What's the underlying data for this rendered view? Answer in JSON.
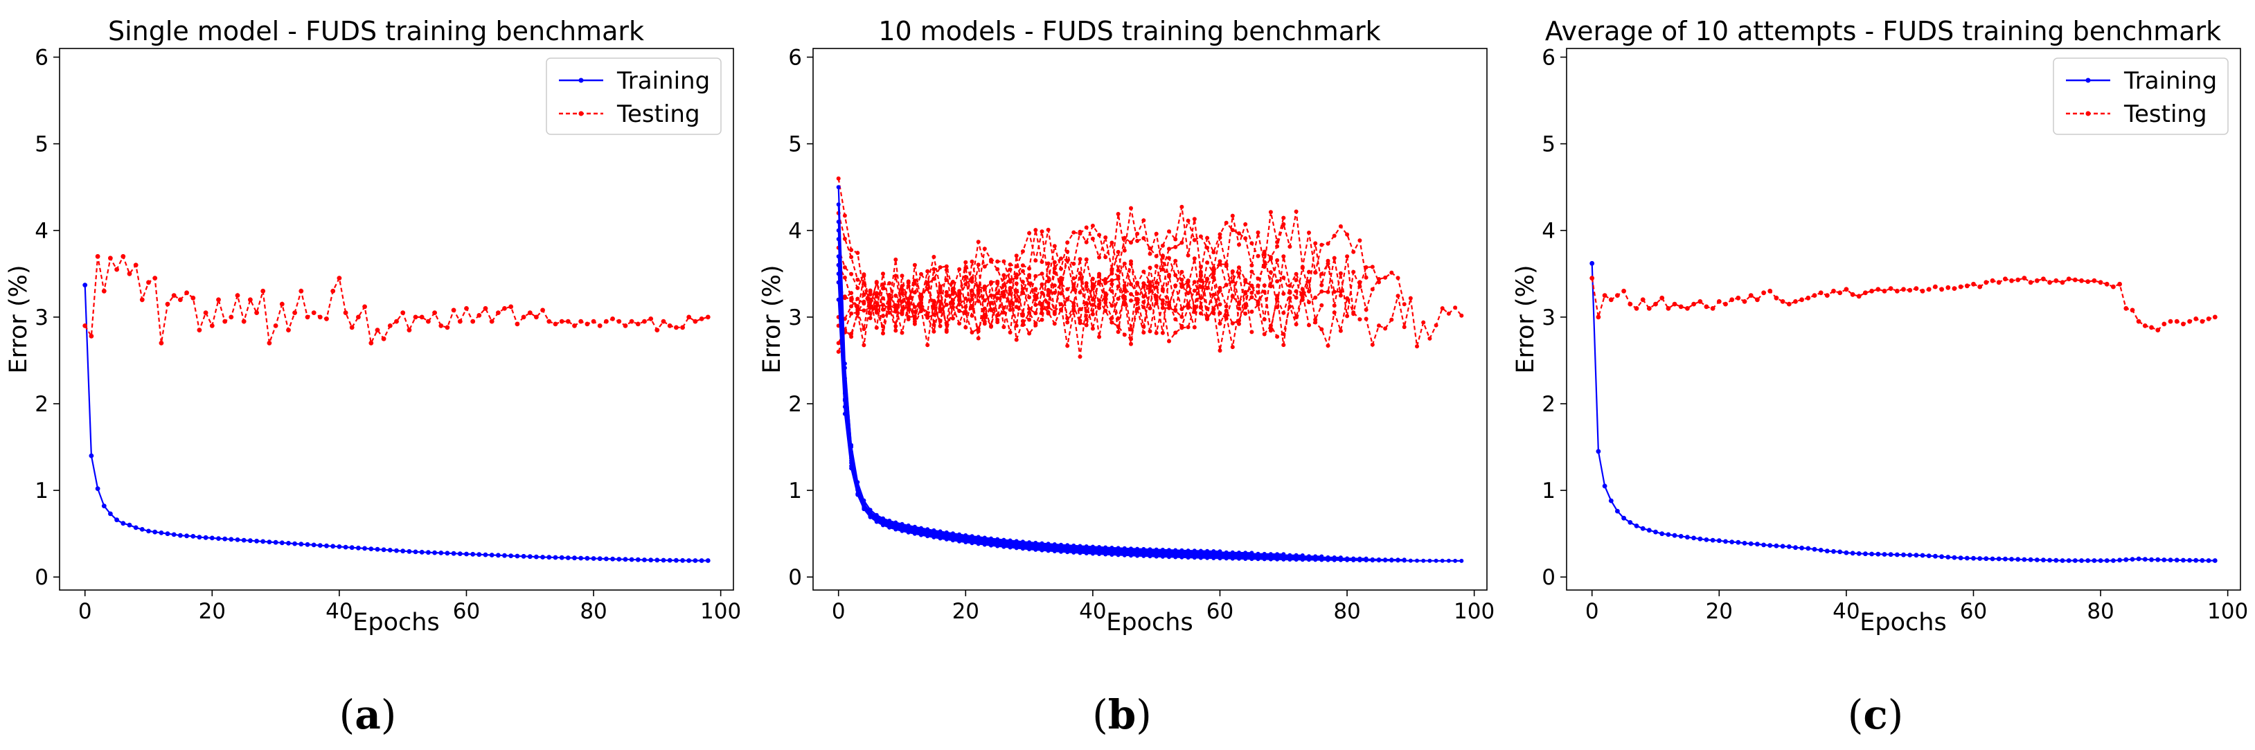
{
  "colors": {
    "training": "#0000ff",
    "testing": "#ff0000"
  },
  "chart_data": [
    {
      "type": "line",
      "panel": "a",
      "title": "Single model - FUDS training benchmark",
      "xlabel": "Epochs",
      "ylabel": "Error (%)",
      "xlim": [
        -4,
        102
      ],
      "ylim": [
        -0.15,
        6.1
      ],
      "xticks": [
        0,
        20,
        40,
        60,
        80,
        100
      ],
      "yticks": [
        0,
        1,
        2,
        3,
        4,
        5,
        6
      ],
      "legend": {
        "position": "upper right",
        "entries": [
          "Training",
          "Testing"
        ]
      },
      "series": [
        {
          "name": "Training",
          "style": "solid",
          "color": "#0000ff",
          "x_start": 0,
          "values": [
            3.37,
            1.4,
            1.02,
            0.82,
            0.73,
            0.66,
            0.62,
            0.6,
            0.57,
            0.55,
            0.53,
            0.52,
            0.51,
            0.5,
            0.49,
            0.48,
            0.475,
            0.47,
            0.46,
            0.455,
            0.45,
            0.445,
            0.44,
            0.435,
            0.43,
            0.425,
            0.42,
            0.415,
            0.41,
            0.405,
            0.4,
            0.395,
            0.39,
            0.385,
            0.38,
            0.375,
            0.37,
            0.365,
            0.36,
            0.355,
            0.35,
            0.345,
            0.34,
            0.335,
            0.33,
            0.325,
            0.32,
            0.315,
            0.31,
            0.305,
            0.3,
            0.295,
            0.29,
            0.287,
            0.284,
            0.281,
            0.278,
            0.275,
            0.272,
            0.269,
            0.266,
            0.263,
            0.26,
            0.257,
            0.254,
            0.251,
            0.248,
            0.245,
            0.242,
            0.239,
            0.236,
            0.233,
            0.23,
            0.228,
            0.226,
            0.224,
            0.222,
            0.22,
            0.218,
            0.216,
            0.214,
            0.212,
            0.21,
            0.208,
            0.206,
            0.204,
            0.202,
            0.2,
            0.198,
            0.196,
            0.195,
            0.194,
            0.193,
            0.192,
            0.191,
            0.19,
            0.19,
            0.19,
            0.19
          ]
        },
        {
          "name": "Testing",
          "style": "dashed",
          "color": "#ff0000",
          "x_start": 0,
          "values": [
            2.9,
            2.78,
            3.7,
            3.3,
            3.68,
            3.55,
            3.7,
            3.5,
            3.6,
            3.2,
            3.4,
            3.45,
            2.7,
            3.15,
            3.25,
            3.2,
            3.28,
            3.22,
            2.85,
            3.05,
            2.9,
            3.2,
            2.95,
            3.0,
            3.25,
            2.95,
            3.2,
            3.05,
            3.3,
            2.7,
            2.9,
            3.15,
            2.85,
            3.05,
            3.3,
            3.0,
            3.05,
            3.0,
            2.98,
            3.3,
            3.45,
            3.05,
            2.88,
            3.0,
            3.12,
            2.7,
            2.85,
            2.75,
            2.9,
            2.95,
            3.05,
            2.85,
            3.0,
            3.0,
            2.95,
            3.05,
            2.9,
            2.88,
            3.08,
            2.95,
            3.1,
            2.95,
            3.02,
            3.1,
            2.95,
            3.05,
            3.1,
            3.12,
            2.92,
            3.0,
            3.05,
            3.0,
            3.08,
            2.95,
            2.92,
            2.95,
            2.95,
            2.9,
            2.95,
            2.92,
            2.95,
            2.9,
            2.95,
            2.98,
            2.95,
            2.9,
            2.95,
            2.92,
            2.95,
            2.98,
            2.85,
            2.95,
            2.9,
            2.88,
            2.88,
            3.0,
            2.95,
            2.98,
            3.0
          ]
        }
      ]
    },
    {
      "type": "line",
      "panel": "b",
      "title": "10 models - FUDS training benchmark",
      "xlabel": "Epochs",
      "ylabel": "Error (%)",
      "xlim": [
        -4,
        102
      ],
      "ylim": [
        -0.15,
        6.1
      ],
      "xticks": [
        0,
        20,
        40,
        60,
        80,
        100
      ],
      "yticks": [
        0,
        1,
        2,
        3,
        4,
        5,
        6
      ],
      "legend": null,
      "training_runs": [
        {
          "length": 86,
          "start": 3.6,
          "final": 0.19
        },
        {
          "length": 99,
          "start": 4.5,
          "final": 0.18
        },
        {
          "length": 71,
          "start": 3.9,
          "final": 0.24
        },
        {
          "length": 84,
          "start": 3.4,
          "final": 0.2
        },
        {
          "length": 61,
          "start": 4.3,
          "final": 0.26
        },
        {
          "length": 77,
          "start": 3.2,
          "final": 0.22
        },
        {
          "length": 90,
          "start": 4.0,
          "final": 0.19
        },
        {
          "length": 66,
          "start": 3.5,
          "final": 0.25
        },
        {
          "length": 80,
          "start": 4.1,
          "final": 0.21
        },
        {
          "length": 74,
          "start": 3.7,
          "final": 0.23
        }
      ],
      "testing_runs": [
        {
          "length": 99,
          "start": 4.6,
          "plateau": 2.95
        },
        {
          "length": 84,
          "start": 3.2,
          "plateau": 3.85
        },
        {
          "length": 71,
          "start": 2.7,
          "plateau": 3.9
        },
        {
          "length": 86,
          "start": 3.4,
          "plateau": 3.4
        },
        {
          "length": 61,
          "start": 3.0,
          "plateau": 3.3
        },
        {
          "length": 77,
          "start": 4.2,
          "plateau": 3.2
        },
        {
          "length": 90,
          "start": 2.6,
          "plateau": 3.35
        },
        {
          "length": 66,
          "start": 3.6,
          "plateau": 3.15
        },
        {
          "length": 80,
          "start": 2.9,
          "plateau": 3.45
        },
        {
          "length": 74,
          "start": 3.8,
          "plateau": 3.1
        }
      ]
    },
    {
      "type": "line",
      "panel": "c",
      "title": "Average of 10 attempts - FUDS training benchmark",
      "xlabel": "Epochs",
      "ylabel": "Error (%)",
      "xlim": [
        -4,
        102
      ],
      "ylim": [
        -0.15,
        6.1
      ],
      "xticks": [
        0,
        20,
        40,
        60,
        80,
        100
      ],
      "yticks": [
        0,
        1,
        2,
        3,
        4,
        5,
        6
      ],
      "legend": {
        "position": "upper right",
        "entries": [
          "Training",
          "Testing"
        ]
      },
      "series": [
        {
          "name": "Training",
          "style": "solid",
          "color": "#0000ff",
          "x_start": 0,
          "values": [
            3.62,
            1.45,
            1.05,
            0.88,
            0.76,
            0.68,
            0.63,
            0.59,
            0.56,
            0.54,
            0.52,
            0.5,
            0.49,
            0.48,
            0.47,
            0.46,
            0.45,
            0.44,
            0.43,
            0.425,
            0.42,
            0.41,
            0.405,
            0.4,
            0.39,
            0.385,
            0.38,
            0.37,
            0.365,
            0.36,
            0.355,
            0.35,
            0.34,
            0.335,
            0.33,
            0.32,
            0.31,
            0.3,
            0.295,
            0.29,
            0.28,
            0.275,
            0.27,
            0.268,
            0.266,
            0.264,
            0.262,
            0.26,
            0.258,
            0.256,
            0.254,
            0.252,
            0.25,
            0.245,
            0.24,
            0.235,
            0.23,
            0.225,
            0.22,
            0.218,
            0.216,
            0.214,
            0.212,
            0.21,
            0.21,
            0.208,
            0.206,
            0.204,
            0.202,
            0.2,
            0.198,
            0.196,
            0.194,
            0.192,
            0.19,
            0.19,
            0.19,
            0.19,
            0.19,
            0.19,
            0.19,
            0.19,
            0.19,
            0.195,
            0.2,
            0.205,
            0.21,
            0.205,
            0.2,
            0.2,
            0.198,
            0.196,
            0.195,
            0.194,
            0.193,
            0.192,
            0.191,
            0.19,
            0.19
          ]
        },
        {
          "name": "Testing",
          "style": "dashed",
          "color": "#ff0000",
          "x_start": 0,
          "values": [
            3.45,
            3.0,
            3.25,
            3.2,
            3.25,
            3.3,
            3.15,
            3.1,
            3.2,
            3.1,
            3.15,
            3.22,
            3.1,
            3.15,
            3.12,
            3.1,
            3.15,
            3.18,
            3.12,
            3.1,
            3.18,
            3.15,
            3.2,
            3.22,
            3.18,
            3.25,
            3.2,
            3.28,
            3.3,
            3.22,
            3.18,
            3.15,
            3.18,
            3.2,
            3.22,
            3.25,
            3.28,
            3.25,
            3.3,
            3.28,
            3.32,
            3.26,
            3.24,
            3.28,
            3.3,
            3.32,
            3.3,
            3.33,
            3.3,
            3.32,
            3.31,
            3.33,
            3.3,
            3.32,
            3.35,
            3.32,
            3.34,
            3.33,
            3.35,
            3.36,
            3.38,
            3.35,
            3.4,
            3.42,
            3.4,
            3.44,
            3.42,
            3.43,
            3.45,
            3.4,
            3.42,
            3.44,
            3.4,
            3.42,
            3.4,
            3.44,
            3.43,
            3.42,
            3.41,
            3.42,
            3.4,
            3.38,
            3.35,
            3.38,
            3.1,
            3.08,
            2.95,
            2.9,
            2.88,
            2.85,
            2.92,
            2.95,
            2.95,
            2.92,
            2.95,
            2.98,
            2.95,
            2.98,
            3.0
          ]
        }
      ]
    }
  ],
  "panel_labels": [
    {
      "open": "(",
      "letter": "a",
      "close": ")"
    },
    {
      "open": "(",
      "letter": "b",
      "close": ")"
    },
    {
      "open": "(",
      "letter": "c",
      "close": ")"
    }
  ]
}
